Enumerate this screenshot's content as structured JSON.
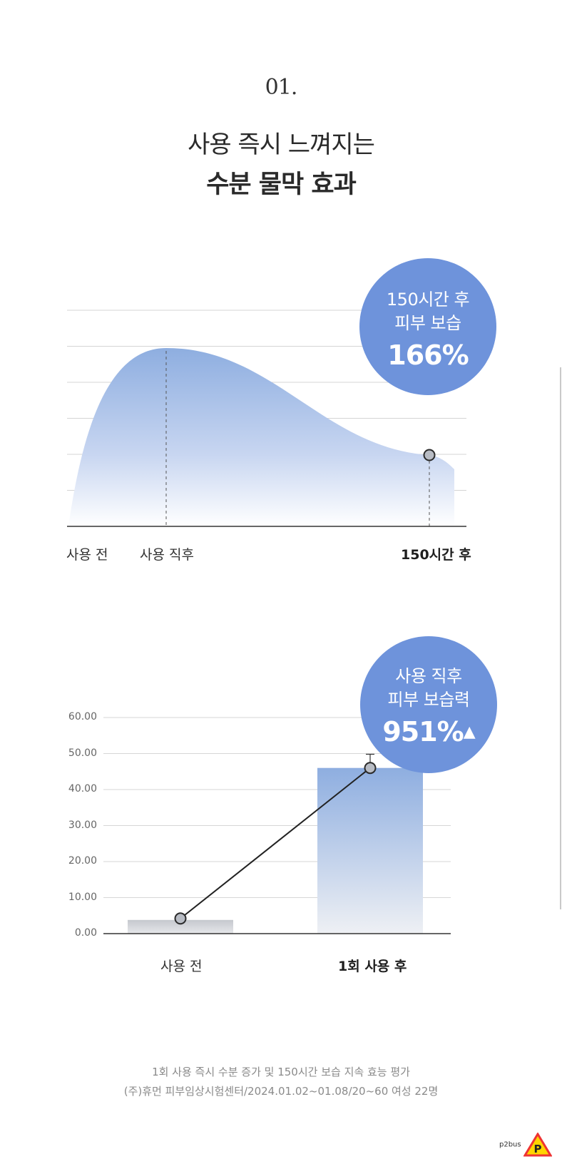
{
  "header": {
    "number": "01.",
    "title_line1": "사용 즉시 느껴지는",
    "title_line2": "수분 물막 효과"
  },
  "chart_data": [
    {
      "type": "area",
      "x": [
        "사용 전",
        "사용 직후",
        "150시간 후"
      ],
      "values": [
        0,
        100,
        40
      ],
      "highlight_x": "150시간 후",
      "grid": true,
      "callout": {
        "line1": "150시간 후",
        "line2": "피부 보습",
        "value": "166%"
      }
    },
    {
      "type": "bar",
      "categories": [
        "사용 전",
        "1회 사용 후"
      ],
      "highlight_category": "1회 사용 후",
      "values": [
        3.8,
        46.0
      ],
      "line_points": [
        4.2,
        46.0
      ],
      "error_bar_upper": 49.8,
      "yticks": [
        "0.00",
        "10.00",
        "20.00",
        "30.00",
        "40.00",
        "50.00",
        "60.00"
      ],
      "ylim": [
        0,
        60
      ],
      "grid": true,
      "callout": {
        "line1": "사용 직후",
        "line2": "피부 보습력",
        "value": "951%",
        "arrow": "▲"
      }
    }
  ],
  "footer": {
    "line1": "1회 사용 즉시 수분 증가 및 150시간 보습 지속 효능 평가",
    "line2": "(주)휴먼 피부임상시험센터/2024.01.02~01.08/20~60 여성 22명"
  },
  "logo": {
    "text": "p2bus",
    "badge": "P"
  },
  "colors": {
    "accent": "#6e93db",
    "bar_top": "#8eaee0",
    "line": "#222222",
    "marker": "#b8bcc4"
  }
}
